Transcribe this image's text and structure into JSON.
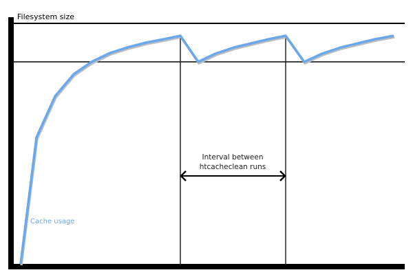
{
  "diagram": {
    "y_axis_label": "Filesystem size",
    "curve_label": "Cache usage",
    "interval_label_line1": "Interval between",
    "interval_label_line2": "htcacheclean runs",
    "colors": {
      "curve": "#6aa8ee",
      "curve_shadow": "#bdbdbd",
      "lines": "#000000"
    }
  }
}
